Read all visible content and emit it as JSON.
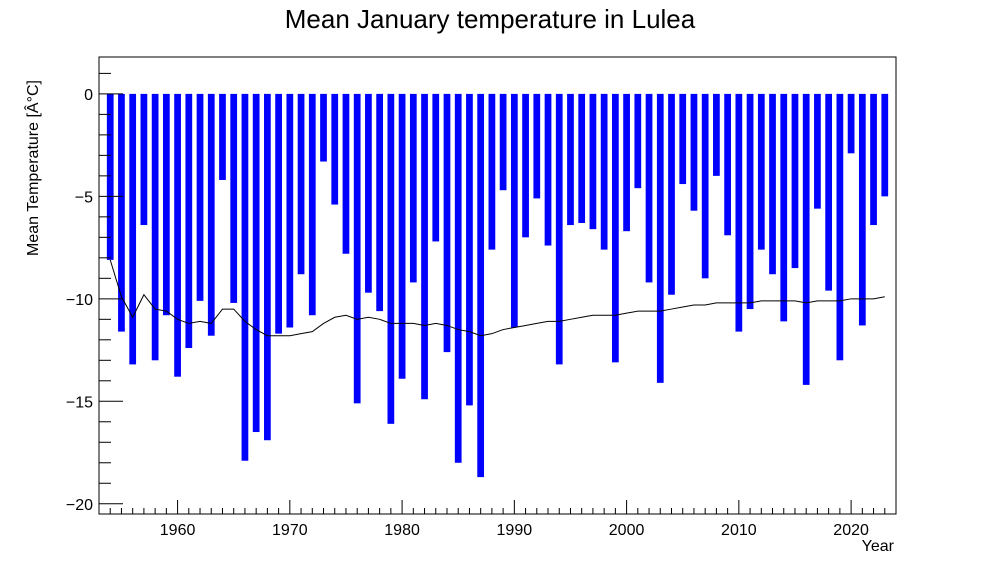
{
  "chart_data": {
    "type": "bar",
    "title": "Mean January temperature in Lulea",
    "xlabel": "Year",
    "ylabel": "Mean Temperature [Â°C]",
    "xlim": [
      1953,
      2024
    ],
    "ylim": [
      -20.5,
      1.8
    ],
    "x_ticks": [
      1960,
      1970,
      1980,
      1990,
      2000,
      2010,
      2020
    ],
    "y_ticks": [
      0,
      -5,
      -10,
      -15,
      -20
    ],
    "years": [
      1954,
      1955,
      1956,
      1957,
      1958,
      1959,
      1960,
      1961,
      1962,
      1963,
      1964,
      1965,
      1966,
      1967,
      1968,
      1969,
      1970,
      1971,
      1972,
      1973,
      1974,
      1975,
      1976,
      1977,
      1978,
      1979,
      1980,
      1981,
      1982,
      1983,
      1984,
      1985,
      1986,
      1987,
      1988,
      1989,
      1990,
      1991,
      1992,
      1993,
      1994,
      1995,
      1996,
      1997,
      1998,
      1999,
      2000,
      2001,
      2002,
      2003,
      2004,
      2005,
      2006,
      2007,
      2008,
      2009,
      2010,
      2011,
      2012,
      2013,
      2014,
      2015,
      2016,
      2017,
      2018,
      2019,
      2020,
      2021,
      2022,
      2023
    ],
    "series": [
      {
        "type": "bar",
        "color": "#0000ff",
        "values": [
          -8.1,
          -11.6,
          -13.2,
          -6.4,
          -13.0,
          -10.8,
          -13.8,
          -12.4,
          -10.1,
          -11.8,
          -4.2,
          -10.2,
          -17.9,
          -16.5,
          -16.9,
          -11.7,
          -11.4,
          -8.8,
          -10.8,
          -3.3,
          -5.4,
          -7.8,
          -15.1,
          -9.7,
          -10.6,
          -16.1,
          -13.9,
          -9.2,
          -14.9,
          -7.2,
          -12.6,
          -18.0,
          -15.2,
          -18.7,
          -7.6,
          -4.7,
          -11.4,
          -7.0,
          -5.1,
          -7.4,
          -13.2,
          -6.4,
          -6.3,
          -6.6,
          -7.6,
          -13.1,
          -6.7,
          -4.6,
          -9.2,
          -14.1,
          -9.8,
          -4.4,
          -5.7,
          -9.0,
          -4.0,
          -6.9,
          -11.6,
          -10.5,
          -7.6,
          -8.8,
          -11.1,
          -8.5,
          -14.2,
          -5.6,
          -9.6,
          -13.0,
          -2.9,
          -11.3,
          -6.4,
          -5.0
        ]
      },
      {
        "type": "line",
        "color": "#000000",
        "values": [
          -8.1,
          -9.9,
          -10.9,
          -9.8,
          -10.5,
          -10.6,
          -11.0,
          -11.2,
          -11.1,
          -11.2,
          -10.5,
          -10.5,
          -11.1,
          -11.5,
          -11.8,
          -11.8,
          -11.8,
          -11.7,
          -11.6,
          -11.2,
          -10.9,
          -10.8,
          -11.0,
          -10.9,
          -11.0,
          -11.2,
          -11.2,
          -11.2,
          -11.3,
          -11.2,
          -11.3,
          -11.5,
          -11.6,
          -11.8,
          -11.7,
          -11.5,
          -11.4,
          -11.3,
          -11.2,
          -11.1,
          -11.1,
          -11.0,
          -10.9,
          -10.8,
          -10.8,
          -10.8,
          -10.7,
          -10.6,
          -10.6,
          -10.6,
          -10.5,
          -10.4,
          -10.3,
          -10.3,
          -10.2,
          -10.2,
          -10.2,
          -10.2,
          -10.1,
          -10.1,
          -10.1,
          -10.1,
          -10.2,
          -10.1,
          -10.1,
          -10.1,
          -10.0,
          -10.0,
          -10.0,
          -9.9
        ]
      }
    ]
  }
}
